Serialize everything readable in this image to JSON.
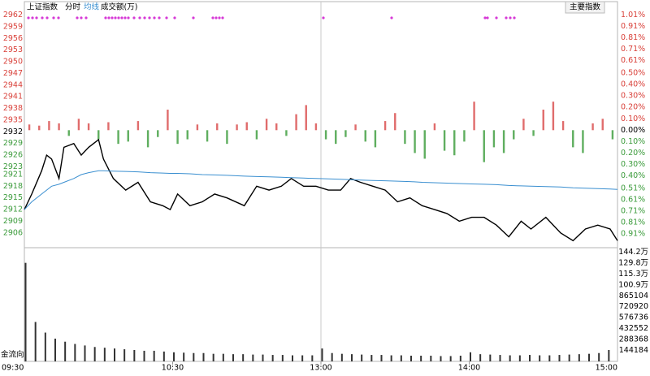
{
  "chart_data": [
    {
      "type": "line",
      "title": "上证指数",
      "button": "主要指数",
      "xlim": [
        "09:30",
        "15:00"
      ],
      "xticks": [
        "09:30",
        "10:30",
        "13:00",
        "14:00",
        "15:00"
      ],
      "ylim": [
        2902.2,
        2963.8
      ],
      "yticks": [
        2962,
        2959,
        2956,
        2953,
        2950,
        2947,
        2944,
        2941,
        2938,
        2935,
        2932,
        2929,
        2926,
        2923,
        2921,
        2918,
        2915,
        2912,
        2909,
        2906
      ],
      "y2lim": [
        -1.03,
        1.07
      ],
      "y2ticks": [
        {
          "value": 1.01,
          "label": "1.01%"
        },
        {
          "value": 0.91,
          "label": "0.91%"
        },
        {
          "value": 0.81,
          "label": "0.81%"
        },
        {
          "value": 0.71,
          "label": "0.71%"
        },
        {
          "value": 0.61,
          "label": "0.61%"
        },
        {
          "value": 0.5,
          "label": "0.50%"
        },
        {
          "value": 0.4,
          "label": "0.40%"
        },
        {
          "value": 0.3,
          "label": "0.30%"
        },
        {
          "value": 0.2,
          "label": "0.20%"
        },
        {
          "value": 0.1,
          "label": "0.10%"
        },
        {
          "value": 0,
          "label": "0.00%"
        },
        {
          "value": -0.1,
          "label": "0.10%"
        },
        {
          "value": -0.2,
          "label": "0.20%"
        },
        {
          "value": -0.3,
          "label": "0.30%"
        },
        {
          "value": -0.4,
          "label": "0.40%"
        },
        {
          "value": -0.51,
          "label": "0.51%"
        },
        {
          "value": -0.61,
          "label": "0.61%"
        },
        {
          "value": -0.71,
          "label": "0.71%"
        },
        {
          "value": -0.81,
          "label": "0.81%"
        },
        {
          "value": -0.91,
          "label": "0.91%"
        }
      ],
      "up_color": "#d9413a",
      "down_color": "#3b9b3b",
      "x": [
        "09:30",
        "09:33",
        "09:37",
        "09:39",
        "09:41",
        "09:44",
        "09:46",
        "09:50",
        "09:53",
        "09:56",
        "10:00",
        "10:02",
        "10:06",
        "10:11",
        "10:16",
        "10:21",
        "10:26",
        "10:29",
        "10:32",
        "10:37",
        "10:42",
        "10:47",
        "10:52",
        "10:59",
        "11:04",
        "11:09",
        "11:14",
        "11:18",
        "11:23",
        "11:28",
        "13:03",
        "13:08",
        "13:12",
        "13:16",
        "13:21",
        "13:26",
        "13:31",
        "13:36",
        "13:41",
        "13:46",
        "13:51",
        "13:56",
        "14:01",
        "14:06",
        "14:11",
        "14:16",
        "14:21",
        "14:25",
        "14:31",
        "14:37",
        "14:42",
        "14:47",
        "14:52",
        "14:57",
        "15:00"
      ],
      "series": [
        {
          "name": "分时",
          "color": "#000000",
          "values": [
            2912,
            2916,
            2922,
            2926,
            2925,
            2920,
            2928,
            2929,
            2926,
            2928,
            2930,
            2925,
            2920,
            2917,
            2919,
            2914,
            2913,
            2912,
            2916,
            2913,
            2914,
            2916,
            2915,
            2913,
            2918,
            2917,
            2918,
            2920,
            2918,
            2918,
            2917,
            2917,
            2920,
            2919,
            2918,
            2917,
            2914,
            2915,
            2913,
            2912,
            2911,
            2909,
            2910,
            2910,
            2908,
            2905,
            2909,
            2907,
            2910,
            2906,
            2904,
            2907,
            2908,
            2907,
            2904
          ]
        },
        {
          "name": "均线",
          "color": "#3a8fd0",
          "values": [
            2912,
            2914,
            2916,
            2917,
            2918,
            2918.5,
            2919,
            2920,
            2921,
            2921.5,
            2922,
            2922,
            2921.9,
            2921.8,
            2921.7,
            2921.5,
            2921.4,
            2921.3,
            2921.3,
            2921.2,
            2921.0,
            2920.9,
            2920.8,
            2920.6,
            2920.5,
            2920.4,
            2920.3,
            2920.2,
            2920.1,
            2920.0,
            2919.9,
            2919.8,
            2919.7,
            2919.6,
            2919.5,
            2919.4,
            2919.3,
            2919.2,
            2919.0,
            2918.9,
            2918.8,
            2918.7,
            2918.6,
            2918.5,
            2918.4,
            2918.2,
            2918.1,
            2918.0,
            2917.9,
            2917.8,
            2917.6,
            2917.5,
            2917.4,
            2917.3,
            2917.2
          ]
        },
        {
          "type": "bar",
          "axis": "y2",
          "color": "#e06c6c",
          "negative_color": "#5fae5f",
          "x": [
            "09:32",
            "09:36",
            "09:40",
            "09:44",
            "09:48",
            "09:52",
            "09:56",
            "10:00",
            "10:04",
            "10:08",
            "10:12",
            "10:16",
            "10:20",
            "10:24",
            "10:28",
            "10:32",
            "10:36",
            "10:40",
            "10:44",
            "10:48",
            "10:52",
            "10:56",
            "11:00",
            "11:04",
            "11:08",
            "11:12",
            "11:16",
            "11:20",
            "11:24",
            "11:28",
            "13:02",
            "13:06",
            "13:10",
            "13:14",
            "13:18",
            "13:22",
            "13:26",
            "13:30",
            "13:34",
            "13:38",
            "13:42",
            "13:46",
            "13:50",
            "13:54",
            "13:58",
            "14:02",
            "14:06",
            "14:10",
            "14:14",
            "14:18",
            "14:22",
            "14:26",
            "14:30",
            "14:34",
            "14:38",
            "14:42",
            "14:46",
            "14:50",
            "14:54",
            "14:58"
          ],
          "values": [
            0.05,
            0.04,
            0.08,
            0.06,
            -0.05,
            0.1,
            0.06,
            -0.08,
            0.07,
            -0.12,
            -0.1,
            0.08,
            -0.15,
            -0.06,
            0.18,
            -0.12,
            -0.08,
            0.05,
            -0.1,
            0.06,
            -0.12,
            0.05,
            0.07,
            -0.08,
            0.1,
            0.06,
            -0.05,
            0.14,
            0.22,
            0.06,
            -0.08,
            -0.12,
            -0.06,
            0.05,
            -0.1,
            -0.15,
            0.08,
            0.15,
            -0.12,
            -0.2,
            -0.25,
            0.06,
            -0.18,
            -0.22,
            -0.1,
            0.25,
            -0.28,
            -0.15,
            -0.2,
            -0.08,
            0.1,
            -0.05,
            0.18,
            0.25,
            0.08,
            -0.15,
            -0.2,
            0.06,
            0.1,
            -0.08
          ]
        }
      ]
    },
    {
      "type": "bar",
      "title": "成交额(万)",
      "indicator_label": "金流向",
      "color": "#333333",
      "ylim": [
        0,
        1500000
      ],
      "yticks": [
        {
          "value": 1442000,
          "label": "144.2万"
        },
        {
          "value": 1298000,
          "label": "129.8万"
        },
        {
          "value": 1153000,
          "label": "115.3万"
        },
        {
          "value": 1009000,
          "label": "100.9万"
        },
        865104,
        720920,
        576736,
        432552,
        288368,
        144184
      ],
      "x": [
        "09:30",
        "09:34",
        "09:38",
        "09:42",
        "09:46",
        "09:50",
        "09:54",
        "09:58",
        "10:02",
        "10:06",
        "10:10",
        "10:14",
        "10:18",
        "10:22",
        "10:26",
        "10:30",
        "10:34",
        "10:38",
        "10:42",
        "10:46",
        "10:50",
        "10:54",
        "10:58",
        "11:02",
        "11:06",
        "11:10",
        "11:14",
        "11:18",
        "11:22",
        "11:26",
        "13:00",
        "13:04",
        "13:08",
        "13:12",
        "13:16",
        "13:20",
        "13:24",
        "13:28",
        "13:32",
        "13:36",
        "13:40",
        "13:44",
        "13:48",
        "13:52",
        "13:56",
        "14:00",
        "14:04",
        "14:08",
        "14:12",
        "14:16",
        "14:20",
        "14:24",
        "14:28",
        "14:32",
        "14:36",
        "14:40",
        "14:44",
        "14:48",
        "14:52",
        "14:56"
      ],
      "values": [
        1300000,
        520000,
        380000,
        300000,
        260000,
        230000,
        210000,
        190000,
        180000,
        170000,
        160000,
        150000,
        140000,
        140000,
        130000,
        120000,
        115000,
        110000,
        110000,
        100000,
        100000,
        95000,
        95000,
        90000,
        90000,
        85000,
        85000,
        80000,
        80000,
        80000,
        170000,
        110000,
        100000,
        95000,
        90000,
        85000,
        85000,
        80000,
        80000,
        75000,
        75000,
        75000,
        70000,
        70000,
        75000,
        120000,
        95000,
        90000,
        85000,
        80000,
        80000,
        85000,
        80000,
        80000,
        85000,
        90000,
        95000,
        100000,
        110000,
        150000
      ]
    }
  ]
}
